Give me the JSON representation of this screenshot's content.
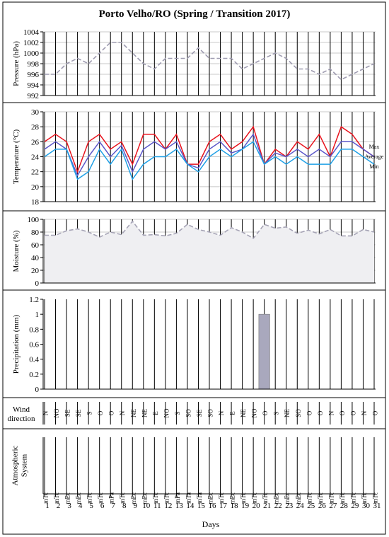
{
  "title": "Porto Velho/RO (Spring / Transition 2017)",
  "xlabel": "Days",
  "days": [
    "1",
    "2",
    "3",
    "4",
    "5",
    "6",
    "7",
    "8",
    "9",
    "10",
    "11",
    "12",
    "13",
    "14",
    "15",
    "16",
    "17",
    "18",
    "19",
    "20",
    "21",
    "22",
    "23",
    "24",
    "25",
    "26",
    "27",
    "28",
    "29",
    "30",
    "31"
  ],
  "colors": {
    "pressure": "#9e9bb0",
    "max": "#e8121c",
    "average": "#5b57c9",
    "min": "#1ea0e6",
    "moisture": "#a6a4b6",
    "precip_bar": "#a9a8bd",
    "panel_fill": "#efeff2"
  },
  "chart_data": [
    {
      "type": "line",
      "ylabel": "Pressure  (hPa)",
      "ylim": [
        992,
        1004
      ],
      "yticks": [
        992,
        994,
        996,
        998,
        1000,
        1002,
        1004
      ],
      "style": "dashed",
      "series": [
        {
          "values": [
            996,
            996,
            998,
            999,
            998,
            1000,
            1002,
            1002,
            1000,
            998,
            997,
            999,
            999,
            999,
            1001,
            999,
            999,
            999,
            997,
            998,
            999,
            1000,
            999,
            997,
            997,
            996,
            997,
            995,
            996,
            997,
            998
          ]
        }
      ]
    },
    {
      "type": "line",
      "ylabel": "Temperature  (°C)",
      "ylim": [
        18,
        30
      ],
      "yticks": [
        18,
        20,
        22,
        24,
        26,
        28,
        30
      ],
      "series": [
        {
          "name": "Max",
          "values": [
            26,
            27,
            26,
            22,
            26,
            27,
            25,
            26,
            23,
            27,
            27,
            25,
            27,
            23,
            23,
            26,
            27,
            25,
            26,
            28,
            23,
            25,
            24,
            26,
            25,
            27,
            24,
            28,
            27,
            25,
            24
          ]
        },
        {
          "name": "Average",
          "values": [
            25,
            26,
            25,
            21.5,
            24,
            26,
            24,
            25.5,
            22,
            25,
            26,
            25,
            26,
            23,
            22.5,
            25,
            26,
            24.5,
            25,
            27,
            23,
            24.5,
            24,
            25,
            24,
            25,
            24,
            26,
            26,
            25,
            24
          ]
        },
        {
          "name": "Min",
          "values": [
            24,
            25,
            25,
            21,
            22,
            25,
            23,
            25,
            21,
            23,
            24,
            24,
            25,
            23,
            22,
            24,
            25,
            24,
            25,
            26,
            23,
            24,
            23,
            24,
            23,
            23,
            23,
            25,
            25,
            24,
            23
          ]
        }
      ]
    },
    {
      "type": "area",
      "ylabel": "Moisture  (%)",
      "ylim": [
        0,
        100
      ],
      "yticks": [
        0,
        20,
        40,
        60,
        80,
        100
      ],
      "style": "dashed",
      "series": [
        {
          "values": [
            75,
            75,
            82,
            85,
            80,
            72,
            80,
            76,
            97,
            75,
            76,
            74,
            78,
            92,
            84,
            80,
            75,
            87,
            80,
            70,
            92,
            86,
            88,
            78,
            83,
            77,
            84,
            74,
            74,
            84,
            80
          ]
        }
      ]
    },
    {
      "type": "bar",
      "ylabel": "Precipitation  (mm)",
      "ylim": [
        0,
        1.2
      ],
      "yticks": [
        "0",
        "0.2",
        "0.4",
        "0.6",
        "0.8",
        "1",
        "1.2"
      ],
      "values": [
        0,
        0,
        0,
        0,
        0,
        0,
        0,
        0,
        0,
        0,
        0,
        0,
        0,
        0,
        0,
        0,
        0,
        0,
        0,
        0,
        1,
        0,
        0,
        0,
        0,
        0,
        0,
        0,
        0,
        0,
        0
      ]
    },
    {
      "type": "table",
      "ylabel": "Wind\ndirection",
      "values": [
        "N",
        "NO",
        "SE",
        "SE",
        "S",
        "O",
        "O",
        "N",
        "NE",
        "NE",
        "E",
        "NO",
        "S",
        "SO",
        "SE",
        "SO",
        "N",
        "E",
        "NE",
        "NO",
        "O",
        "S",
        "NE",
        "SO",
        "O",
        "O",
        "N",
        "O",
        "O",
        "N",
        "O"
      ]
    },
    {
      "type": "table",
      "ylabel": "Atmospheric\nSystem",
      "values": [
        "mTc",
        "mTc",
        "mEc",
        "mEc",
        "mTc",
        "mTc",
        "mPa",
        "mTc",
        "mEc",
        "mEc",
        "mTc",
        "mTc",
        "mPa",
        "mTa",
        "mTa",
        "mEc",
        "mTc",
        "mEc",
        "mTc",
        "mTc",
        "mTc",
        "mEc",
        "mEc",
        "mEc",
        "mTc",
        "mTc",
        "mTc",
        "mTc",
        "mTc",
        "mTc",
        "mTc"
      ]
    }
  ]
}
